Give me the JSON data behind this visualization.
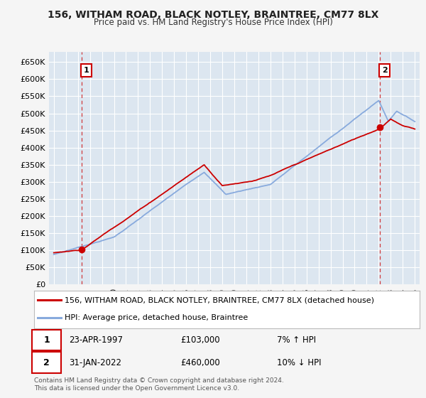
{
  "title": "156, WITHAM ROAD, BLACK NOTLEY, BRAINTREE, CM77 8LX",
  "subtitle": "Price paid vs. HM Land Registry's House Price Index (HPI)",
  "legend_line1": "156, WITHAM ROAD, BLACK NOTLEY, BRAINTREE, CM77 8LX (detached house)",
  "legend_line2": "HPI: Average price, detached house, Braintree",
  "annotation1_date": "23-APR-1997",
  "annotation1_price": "£103,000",
  "annotation1_hpi": "7% ↑ HPI",
  "annotation2_date": "31-JAN-2022",
  "annotation2_price": "£460,000",
  "annotation2_hpi": "10% ↓ HPI",
  "footer": "Contains HM Land Registry data © Crown copyright and database right 2024.\nThis data is licensed under the Open Government Licence v3.0.",
  "fig_bg": "#f5f5f5",
  "plot_bg": "#dce6f0",
  "red_line_color": "#cc0000",
  "blue_line_color": "#88aadd",
  "grid_color": "#ffffff",
  "ylim": [
    0,
    680000
  ],
  "yticks": [
    0,
    50000,
    100000,
    150000,
    200000,
    250000,
    300000,
    350000,
    400000,
    450000,
    500000,
    550000,
    600000,
    650000
  ],
  "ytick_labels": [
    "£0",
    "£50K",
    "£100K",
    "£150K",
    "£200K",
    "£250K",
    "£300K",
    "£350K",
    "£400K",
    "£450K",
    "£500K",
    "£550K",
    "£600K",
    "£650K"
  ],
  "sale1_year": 1997.31,
  "sale1_price": 103000,
  "sale2_year": 2022.08,
  "sale2_price": 460000
}
